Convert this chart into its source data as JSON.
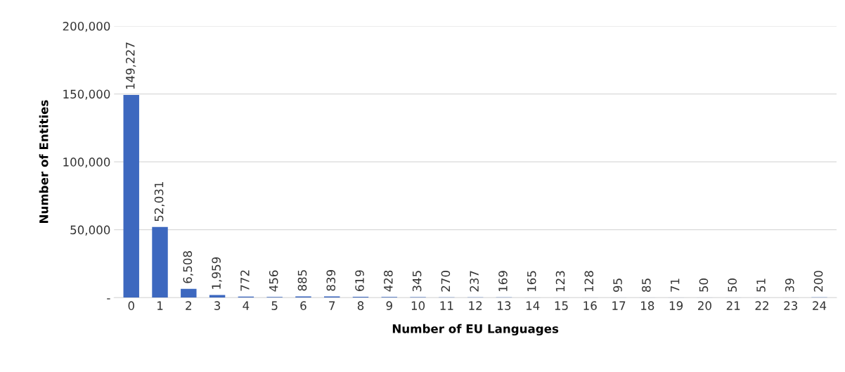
{
  "chart_data": {
    "type": "bar",
    "xlabel": "Number of EU Languages",
    "ylabel": "Number of Entities",
    "categories": [
      "0",
      "1",
      "2",
      "3",
      "4",
      "5",
      "6",
      "7",
      "8",
      "9",
      "10",
      "11",
      "12",
      "13",
      "14",
      "15",
      "16",
      "17",
      "18",
      "19",
      "20",
      "21",
      "22",
      "23",
      "24"
    ],
    "values": [
      149227,
      52031,
      6508,
      1959,
      772,
      456,
      885,
      839,
      619,
      428,
      345,
      270,
      237,
      169,
      165,
      123,
      128,
      95,
      85,
      71,
      50,
      50,
      51,
      39,
      200
    ],
    "value_labels": [
      "149,227",
      "52,031",
      "6,508",
      "1,959",
      "772",
      "456",
      "885",
      "839",
      "619",
      "428",
      "345",
      "270",
      "237",
      "169",
      "165",
      "123",
      "128",
      "95",
      "85",
      "71",
      "50",
      "50",
      "51",
      "39",
      "200"
    ],
    "color": "#3d68bf",
    "ylim": [
      0,
      200000
    ],
    "yticks": [
      {
        "value": 0,
        "label": "-"
      },
      {
        "value": 50000,
        "label": "50,000"
      },
      {
        "value": 100000,
        "label": "100,000"
      },
      {
        "value": 150000,
        "label": "150,000"
      },
      {
        "value": 200000,
        "label": "200,000"
      }
    ],
    "grid": "y",
    "legend": false
  }
}
